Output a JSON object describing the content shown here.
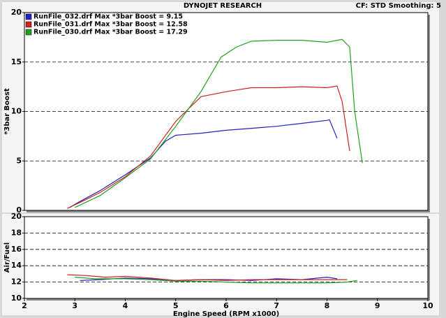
{
  "header": {
    "title": "DYNOJET RESEARCH",
    "settings": "CF: STD  Smoothing: 5"
  },
  "chart_data": [
    {
      "type": "line",
      "ylabel": "*3bar Boost",
      "xlim": [
        2,
        10
      ],
      "ylim": [
        0,
        20
      ],
      "yticks": [
        0,
        5,
        10,
        15,
        20
      ],
      "grid": true,
      "legend": "upper left",
      "series": [
        {
          "name": "RunFile_032.drf Max *3bar Boost = 9.15",
          "color": "#2020c0",
          "x": [
            2.9,
            3.1,
            3.5,
            4.0,
            4.5,
            4.8,
            5.0,
            5.5,
            6.0,
            6.5,
            7.0,
            7.5,
            8.0,
            8.05,
            8.2
          ],
          "values": [
            0.3,
            0.9,
            2,
            3.6,
            5.3,
            7.0,
            7.6,
            7.8,
            8.1,
            8.3,
            8.5,
            8.8,
            9.1,
            9.15,
            7.3
          ]
        },
        {
          "name": "RunFile_031.drf Max *3bar Boost = 12.58",
          "color": "#d02020",
          "x": [
            2.85,
            3.1,
            3.5,
            4.0,
            4.5,
            5.0,
            5.5,
            6.0,
            6.5,
            7.0,
            7.5,
            8.0,
            8.2,
            8.3,
            8.45
          ],
          "values": [
            0.2,
            0.8,
            1.8,
            3.4,
            5.5,
            9.0,
            11.5,
            12.0,
            12.4,
            12.4,
            12.5,
            12.4,
            12.58,
            11,
            6
          ]
        },
        {
          "name": "RunFile_030.drf Max *3bar Boost = 17.29",
          "color": "#20a020",
          "x": [
            3.0,
            3.5,
            4.0,
            4.5,
            5.0,
            5.5,
            5.9,
            6.2,
            6.5,
            7.0,
            7.5,
            8.0,
            8.3,
            8.45,
            8.55,
            8.7
          ],
          "values": [
            0.3,
            1.5,
            3.3,
            5.2,
            8.5,
            12.0,
            15.5,
            16.5,
            17.1,
            17.2,
            17.2,
            17.0,
            17.29,
            16.5,
            10,
            4.8
          ]
        }
      ]
    },
    {
      "type": "line",
      "ylabel": "Air/Fuel",
      "xlabel": "Engine Speed (RPM x1000)",
      "xlim": [
        2,
        10
      ],
      "xticks": [
        2,
        3,
        4,
        5,
        6,
        7,
        8,
        9,
        10
      ],
      "ylim": [
        10,
        20
      ],
      "yticks": [
        10,
        12,
        14,
        16,
        18,
        20
      ],
      "grid": true,
      "series": [
        {
          "color": "#2020c0",
          "x": [
            3.1,
            3.5,
            4.0,
            4.5,
            5.0,
            5.5,
            6.0,
            6.5,
            7.0,
            7.5,
            8.0,
            8.2
          ],
          "values": [
            12.2,
            12.3,
            12.5,
            12.4,
            12.2,
            12.3,
            12.3,
            12.2,
            12.4,
            12.3,
            12.6,
            12.4
          ]
        },
        {
          "color": "#d02020",
          "x": [
            2.85,
            3.2,
            3.6,
            4.0,
            4.5,
            5.0,
            5.5,
            6.0,
            6.5,
            7.0,
            7.5,
            8.0,
            8.4
          ],
          "values": [
            12.9,
            12.8,
            12.6,
            12.7,
            12.5,
            12.2,
            12.3,
            12.2,
            12.3,
            12.3,
            12.3,
            12.3,
            12.3
          ]
        },
        {
          "color": "#20a020",
          "x": [
            3.0,
            3.4,
            4.0,
            4.5,
            5.0,
            5.5,
            6.0,
            6.5,
            7.0,
            7.5,
            8.0,
            8.4,
            8.6
          ],
          "values": [
            12.6,
            12.4,
            12.4,
            12.3,
            12.1,
            12.1,
            12.0,
            11.9,
            11.9,
            11.9,
            11.9,
            12.0,
            12.2
          ]
        }
      ]
    }
  ]
}
